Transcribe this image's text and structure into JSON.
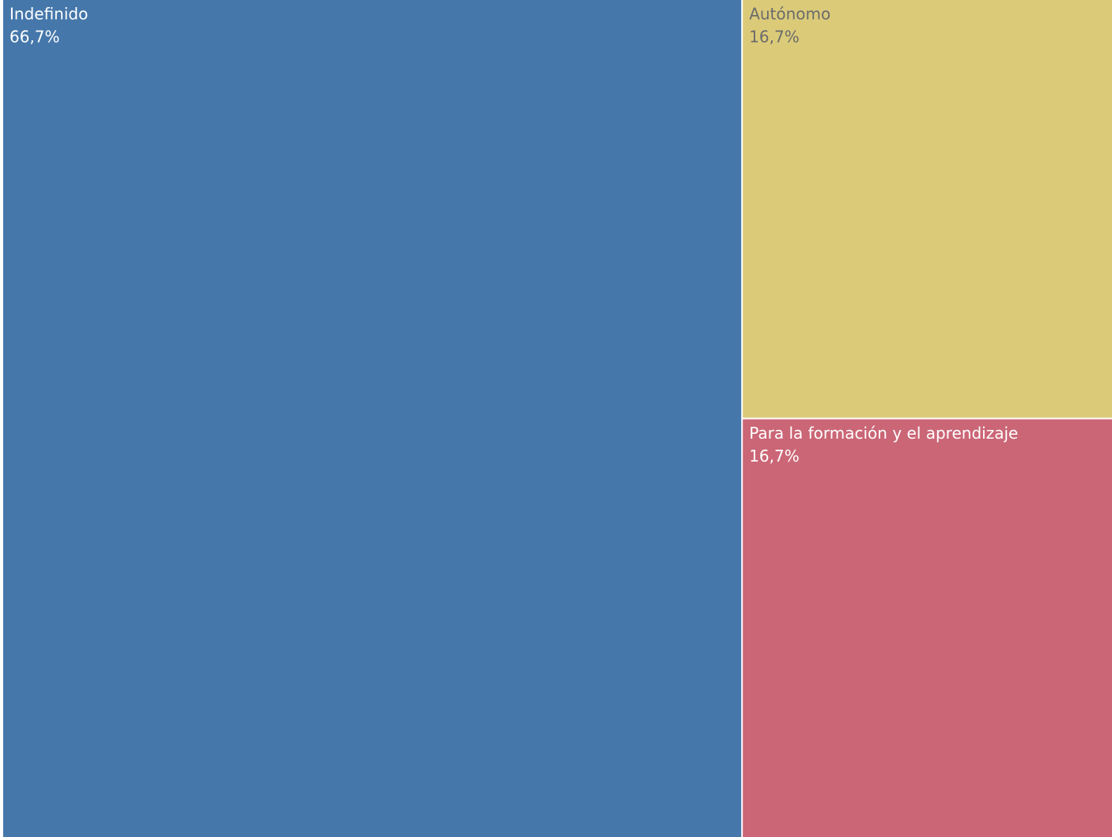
{
  "chart_data": {
    "type": "treemap",
    "categories": [
      "Indefinido",
      "Autónomo",
      "Para la formación y el aprendizaje"
    ],
    "values": [
      66.7,
      16.7,
      16.7
    ],
    "value_labels": [
      "66,7%",
      "16,7%",
      "16,7%"
    ],
    "colors": [
      "#4577aa",
      "#dbcb79",
      "#cb6676"
    ]
  }
}
